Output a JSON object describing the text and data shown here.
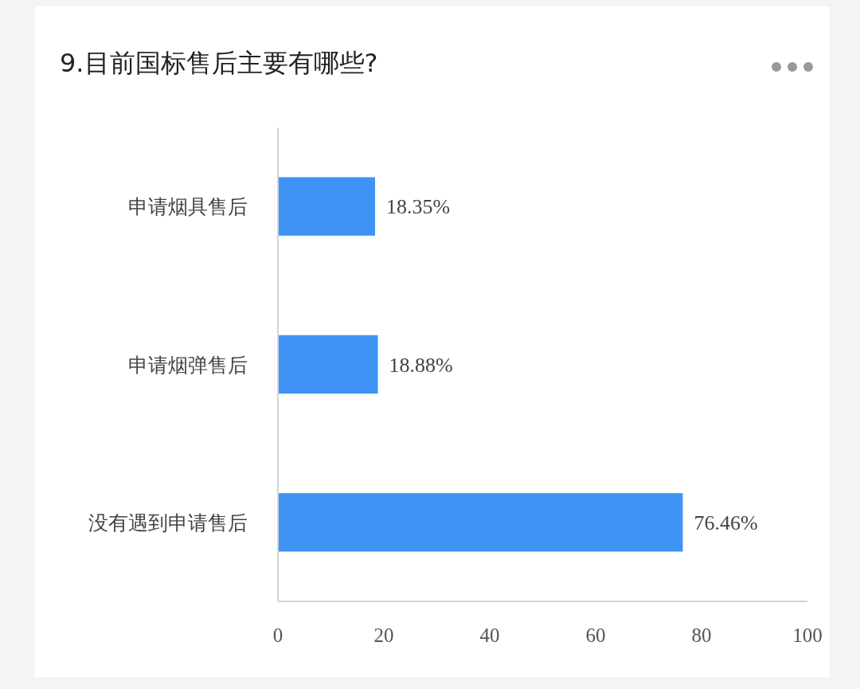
{
  "chart_data": {
    "type": "bar",
    "orientation": "horizontal",
    "title": "9.目前国标售后主要有哪些?",
    "categories": [
      "申请烟具售后",
      "申请烟弹售后",
      "没有遇到申请售后"
    ],
    "values": [
      18.35,
      18.88,
      76.46
    ],
    "value_labels": [
      "18.35%",
      "18.88%",
      "76.46%"
    ],
    "color": "#3f93f5",
    "xlim": [
      0,
      100
    ],
    "xticks": [
      0,
      20,
      40,
      60,
      80,
      100
    ],
    "grid": false
  }
}
